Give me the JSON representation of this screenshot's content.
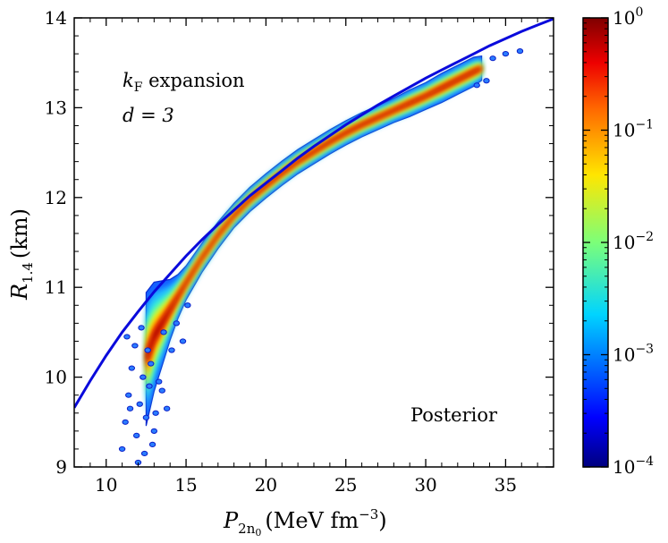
{
  "chart_data": {
    "type": "scatter",
    "subtype": "density-heatmap",
    "title": "",
    "xlabel": {
      "main": "P",
      "sub": "2n",
      "subsub": "0",
      "units": "(MeV fm",
      "exp": "−3",
      "close": ")"
    },
    "ylabel": {
      "main": "R",
      "sub": "1.4",
      "units": "(km)"
    },
    "xlim": [
      8,
      38
    ],
    "ylim": [
      9,
      14
    ],
    "x_ticks": [
      10,
      15,
      20,
      25,
      30,
      35
    ],
    "y_ticks": [
      9,
      10,
      11,
      12,
      13,
      14
    ],
    "x_tick_labels": [
      "10",
      "15",
      "20",
      "25",
      "30",
      "35"
    ],
    "y_tick_labels": [
      "9",
      "10",
      "11",
      "12",
      "13",
      "14"
    ],
    "annotations": {
      "method_italic": "k",
      "method_sub": "F",
      "method_rest": " expansion",
      "order": "d = 3",
      "posterior": "Posterior"
    },
    "fit_curve": {
      "name": "fit",
      "color": "#0a0adc",
      "x": [
        8,
        9,
        10,
        11,
        12,
        13,
        14,
        15,
        16,
        17,
        18,
        19,
        20,
        21,
        22,
        23,
        24,
        25,
        26,
        27,
        28,
        29,
        30,
        31,
        32,
        33,
        34,
        35,
        36,
        37,
        38
      ],
      "y": [
        9.66,
        9.96,
        10.24,
        10.5,
        10.73,
        10.95,
        11.15,
        11.35,
        11.53,
        11.7,
        11.86,
        12.02,
        12.16,
        12.3,
        12.44,
        12.57,
        12.69,
        12.81,
        12.92,
        13.03,
        13.13,
        13.23,
        13.33,
        13.42,
        13.51,
        13.6,
        13.69,
        13.77,
        13.85,
        13.92,
        13.99
      ]
    },
    "density_ridge": {
      "x": [
        12.5,
        13,
        13.5,
        14,
        14.5,
        15,
        16,
        17,
        18,
        19,
        20,
        21,
        22,
        23,
        24,
        25,
        26,
        27,
        28,
        29,
        30,
        31,
        32,
        33,
        33.5
      ],
      "y": [
        10.2,
        10.45,
        10.6,
        10.75,
        10.9,
        11.05,
        11.33,
        11.58,
        11.8,
        11.98,
        12.13,
        12.27,
        12.4,
        12.51,
        12.62,
        12.72,
        12.81,
        12.89,
        12.97,
        13.05,
        13.13,
        13.22,
        13.31,
        13.4,
        13.44
      ],
      "halfwidth": [
        0.55,
        0.45,
        0.35,
        0.25,
        0.18,
        0.14,
        0.12,
        0.11,
        0.1,
        0.1,
        0.1,
        0.1,
        0.1,
        0.1,
        0.1,
        0.1,
        0.1,
        0.1,
        0.1,
        0.11,
        0.11,
        0.12,
        0.12,
        0.12,
        0.1
      ]
    },
    "outliers": [
      {
        "x": 11.0,
        "y": 9.2
      },
      {
        "x": 11.2,
        "y": 9.5
      },
      {
        "x": 11.4,
        "y": 9.8
      },
      {
        "x": 11.6,
        "y": 10.1
      },
      {
        "x": 11.9,
        "y": 9.35
      },
      {
        "x": 12.1,
        "y": 9.7
      },
      {
        "x": 12.3,
        "y": 10.0
      },
      {
        "x": 12.5,
        "y": 9.55
      },
      {
        "x": 12.7,
        "y": 9.9
      },
      {
        "x": 12.9,
        "y": 9.25
      },
      {
        "x": 12.6,
        "y": 10.3
      },
      {
        "x": 13.1,
        "y": 9.6
      },
      {
        "x": 13.3,
        "y": 9.95
      },
      {
        "x": 11.8,
        "y": 10.35
      },
      {
        "x": 12.2,
        "y": 10.55
      },
      {
        "x": 13.5,
        "y": 9.85
      },
      {
        "x": 12.0,
        "y": 9.05
      },
      {
        "x": 11.3,
        "y": 10.45
      },
      {
        "x": 13.0,
        "y": 9.4
      },
      {
        "x": 12.4,
        "y": 9.15
      },
      {
        "x": 14.1,
        "y": 10.3
      },
      {
        "x": 14.4,
        "y": 10.6
      },
      {
        "x": 14.8,
        "y": 10.4
      },
      {
        "x": 15.1,
        "y": 10.8
      },
      {
        "x": 13.8,
        "y": 9.65
      },
      {
        "x": 12.8,
        "y": 10.15
      },
      {
        "x": 11.5,
        "y": 9.65
      },
      {
        "x": 13.6,
        "y": 10.5
      },
      {
        "x": 34.2,
        "y": 13.55
      },
      {
        "x": 35.0,
        "y": 13.6
      },
      {
        "x": 35.9,
        "y": 13.63
      },
      {
        "x": 33.8,
        "y": 13.3
      },
      {
        "x": 33.2,
        "y": 13.25
      }
    ],
    "colorbar": {
      "scale": "log",
      "range": [
        0.0001,
        1
      ],
      "colormap": "jet",
      "tick_labels": [
        {
          "base": "10",
          "exp": "0"
        },
        {
          "base": "10",
          "exp": "−1"
        },
        {
          "base": "10",
          "exp": "−2"
        },
        {
          "base": "10",
          "exp": "−3"
        },
        {
          "base": "10",
          "exp": "−4"
        }
      ]
    }
  }
}
